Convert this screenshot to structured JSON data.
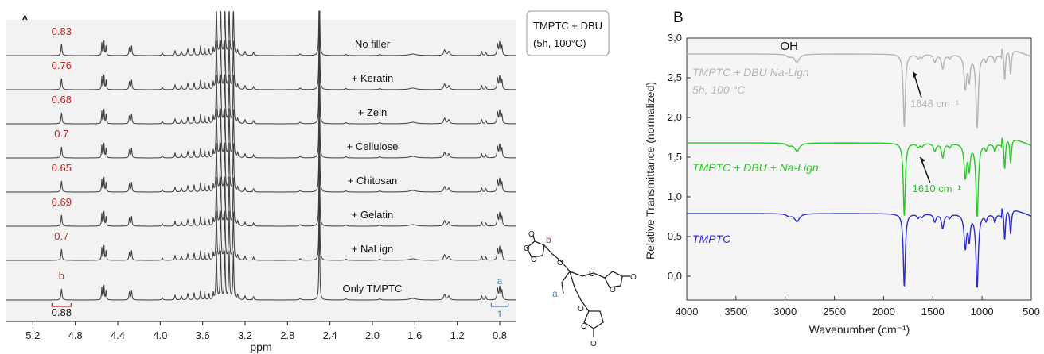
{
  "chart_data": [
    {
      "panel_label": "A",
      "type": "line",
      "xlabel": "ppm",
      "x_ticks": [
        "5.2",
        "4.8",
        "4.4",
        "4.0",
        "3.6",
        "3.2",
        "2.8",
        "2.4",
        "2.0",
        "1.6",
        "1.2",
        "0.8"
      ],
      "xlim": [
        5.45,
        0.65
      ],
      "legend_box": [
        "TMPTC + DBU",
        "(5h, 100°C)"
      ],
      "series": [
        {
          "name": "No filler",
          "integral": "0.83"
        },
        {
          "name": "+ Keratin",
          "integral": "0.76"
        },
        {
          "name": "+ Zein",
          "integral": "0.68"
        },
        {
          "name": "+ Cellulose",
          "integral": "0.7"
        },
        {
          "name": "+ Chitosan",
          "integral": "0.65"
        },
        {
          "name": "+ Gelatin",
          "integral": "0.69"
        },
        {
          "name": "+ NaLign",
          "integral": "0.7"
        },
        {
          "name": "Only TMPTC",
          "integral": "b"
        }
      ],
      "peaks": [
        4.93,
        4.53,
        4.28,
        3.62,
        3.45,
        3.38,
        3.32,
        2.5,
        1.3,
        0.8
      ],
      "bottom_labels": {
        "b_integral": "0.88",
        "a_integral": "1",
        "a_label": "a"
      },
      "structure_labels": {
        "b": "b",
        "a": "a"
      },
      "colors": {
        "line": "#3a3a3a",
        "integral": "#c0261f",
        "bracket_a": "#4a7ab5"
      }
    },
    {
      "panel_label": "B",
      "type": "line",
      "xlabel": "Wavenumber (cm⁻¹)",
      "ylabel": "Relative Transmittance (normalized)",
      "xlim": [
        4000,
        500
      ],
      "ylim": [
        -0.3,
        3.0
      ],
      "x_ticks": [
        "4000",
        "3500",
        "3000",
        "2500",
        "2000",
        "1500",
        "1000",
        "500"
      ],
      "y_ticks": [
        "3,0",
        "2,5",
        "2,0",
        "1,5",
        "1,0",
        "0,5",
        "0,0"
      ],
      "series": [
        {
          "name": "TMPTC + DBU Na-Lign",
          "subtitle": "5h, 100 °C",
          "color": "#b4b4b4",
          "baseline": 2.8
        },
        {
          "name": "TMPTC + DBU + Na-Lign",
          "color": "#22cc22",
          "baseline": 1.68
        },
        {
          "name": "TMPTC",
          "color": "#2b2bd6",
          "baseline": 0.79
        }
      ],
      "annotations": [
        {
          "text": "OH",
          "x": 3050,
          "y": 2.85
        },
        {
          "text": "1648 cm⁻¹",
          "x": 1648,
          "y": 2.57,
          "color": "#b4b4b4"
        },
        {
          "text": "1610 cm⁻¹",
          "x": 1610,
          "y": 1.5,
          "color": "#22cc22"
        }
      ]
    }
  ]
}
